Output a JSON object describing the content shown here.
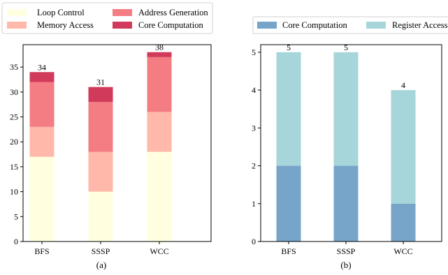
{
  "chart_data": [
    {
      "type": "bar",
      "stacked": true,
      "caption": "(a)",
      "categories": [
        "BFS",
        "SSSP",
        "WCC"
      ],
      "series": [
        {
          "name": "Loop Control",
          "values": [
            17,
            10,
            18
          ],
          "color": "#ffffe0"
        },
        {
          "name": "Memory Access",
          "values": [
            6,
            8,
            8
          ],
          "color": "#ffb8aa"
        },
        {
          "name": "Address Generation",
          "values": [
            9,
            10,
            11
          ],
          "color": "#f47c83"
        },
        {
          "name": "Core Computation",
          "values": [
            2,
            3,
            1
          ],
          "color": "#d13a5a"
        }
      ],
      "totals": [
        "34",
        "31",
        "38"
      ],
      "ylim": [
        0,
        39.5
      ],
      "yticks": [
        "0",
        "5",
        "10",
        "15",
        "20",
        "25",
        "30",
        "35"
      ],
      "legend": "above",
      "grid": false
    },
    {
      "type": "bar",
      "stacked": true,
      "caption": "(b)",
      "categories": [
        "BFS",
        "SSSP",
        "WCC"
      ],
      "series": [
        {
          "name": "Core Computation",
          "values": [
            2,
            2,
            1
          ],
          "color": "#77a5c9"
        },
        {
          "name": "Register Access",
          "values": [
            3,
            3,
            3
          ],
          "color": "#a6d6da"
        }
      ],
      "totals": [
        "5",
        "5",
        "4"
      ],
      "ylim": [
        0,
        5.2
      ],
      "yticks": [
        "0",
        "1",
        "2",
        "3",
        "4",
        "5"
      ],
      "legend": "above",
      "grid": false
    }
  ]
}
